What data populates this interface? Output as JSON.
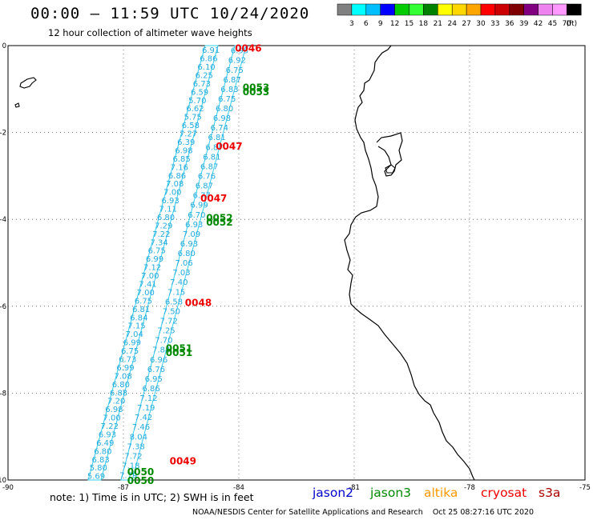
{
  "header": {
    "title": "00:00 – 11:59 UTC 10/24/2020",
    "subtitle": "12 hour collection of altimeter wave heights"
  },
  "colorbar": {
    "labels": [
      "3",
      "6",
      "9",
      "12",
      "15",
      "18",
      "21",
      "24",
      "27",
      "30",
      "33",
      "36",
      "39",
      "42",
      "45",
      "70"
    ],
    "unit": "(ft)",
    "colors": [
      "#808080",
      "#00ffff",
      "#00bfff",
      "#0000ff",
      "#00cc00",
      "#33ff33",
      "#008000",
      "#ffff00",
      "#ffd700",
      "#ffa500",
      "#ff0000",
      "#cc0000",
      "#800000",
      "#800080",
      "#ee82ee",
      "#ff99ff",
      "#000000"
    ]
  },
  "map": {
    "x_ticks": [
      "-90",
      "-87",
      "-84",
      "-81",
      "-78",
      "-75"
    ],
    "y_ticks": [
      "0",
      "-2",
      "-4",
      "-6",
      "-8",
      "-10"
    ],
    "lon_range": [
      -90,
      -75
    ],
    "lat_range": [
      -10,
      0
    ],
    "grid": "dotted",
    "coastline_color": "#000000",
    "track_color": "#33ccee",
    "track_label_color": "#22aadd",
    "track_a_swh": [
      "6.91",
      "6.86",
      "6.10",
      "6.25",
      "6.73",
      "6.59",
      "5.70",
      "6.62",
      "5.75",
      "6.58",
      "7.27",
      "6.39",
      "6.98",
      "6.85",
      "7.16",
      "6.86",
      "7.08",
      "7.00",
      "6.93",
      "7.11",
      "6.80",
      "7.29",
      "7.22",
      "7.34",
      "6.75",
      "6.99",
      "7.12",
      "7.00",
      "7.41",
      "7.00",
      "6.75",
      "6.81",
      "6.84",
      "7.15",
      "7.04",
      "6.99",
      "6.75",
      "6.73",
      "6.99",
      "7.08",
      "6.80",
      "6.88",
      "7.20",
      "6.98",
      "7.00",
      "7.22",
      "6.93",
      "6.49",
      "6.80",
      "6.83",
      "5.80",
      "5.69"
    ],
    "track_b_swh": [
      "6.93",
      "6.92",
      "6.75",
      "6.87",
      "6.83",
      "6.75",
      "6.80",
      "6.98",
      "6.74",
      "6.81",
      "6.87",
      "6.81",
      "6.87",
      "6.76",
      "6.87",
      "6.77",
      "6.99",
      "6.70",
      "6.93",
      "7.09",
      "6.93",
      "6.80",
      "7.06",
      "7.03",
      "7.40",
      "7.15",
      "6.58",
      "7.50",
      "7.72",
      "7.25",
      "7.70",
      "7.84",
      "6.96",
      "6.76",
      "6.95",
      "6.86",
      "7.12",
      "7.19",
      "7.42",
      "7.46",
      "8.04",
      "7.38",
      "7.72",
      "7.18",
      "7.79"
    ],
    "pass_times": [
      {
        "time": "0046",
        "satellite": "cryosat",
        "lon": -84.1,
        "lat": -0.05
      },
      {
        "time": "0047",
        "satellite": "cryosat",
        "lon": -84.6,
        "lat": -2.3
      },
      {
        "time": "0047",
        "satellite": "cryosat",
        "lon": -85.0,
        "lat": -3.5
      },
      {
        "time": "0048",
        "satellite": "cryosat",
        "lon": -85.4,
        "lat": -5.9
      },
      {
        "time": "0049",
        "satellite": "cryosat",
        "lon": -85.8,
        "lat": -9.55
      },
      {
        "time": "0053",
        "satellite": "jason3",
        "lon": -83.9,
        "lat": -0.95
      },
      {
        "time": "0053",
        "satellite": "jason3",
        "lon": -83.9,
        "lat": -1.05
      },
      {
        "time": "0052",
        "satellite": "jason3",
        "lon": -84.85,
        "lat": -3.95
      },
      {
        "time": "0052",
        "satellite": "jason3",
        "lon": -84.85,
        "lat": -4.05
      },
      {
        "time": "0051",
        "satellite": "jason3",
        "lon": -85.9,
        "lat": -6.95
      },
      {
        "time": "0051",
        "satellite": "jason3",
        "lon": -85.9,
        "lat": -7.05
      },
      {
        "time": "0050",
        "satellite": "jason3",
        "lon": -86.9,
        "lat": -9.8
      },
      {
        "time": "0050",
        "satellite": "jason3",
        "lon": -86.9,
        "lat": -10.0
      }
    ]
  },
  "legend": {
    "satellites": [
      {
        "name": "jason2",
        "color": "#0000cc"
      },
      {
        "name": "jason3",
        "color": "#008800"
      },
      {
        "name": "altika",
        "color": "#ff9900"
      },
      {
        "name": "cryosat",
        "color": "#ee0000"
      },
      {
        "name": "s3a",
        "color": "#aa0000"
      }
    ]
  },
  "footer": {
    "note": "note: 1) Time is in UTC; 2) SWH is in feet",
    "credit": "NOAA/NESDIS Center for Satellite Applications and Research",
    "timestamp": "Oct 25 08:27:16 UTC 2020"
  }
}
